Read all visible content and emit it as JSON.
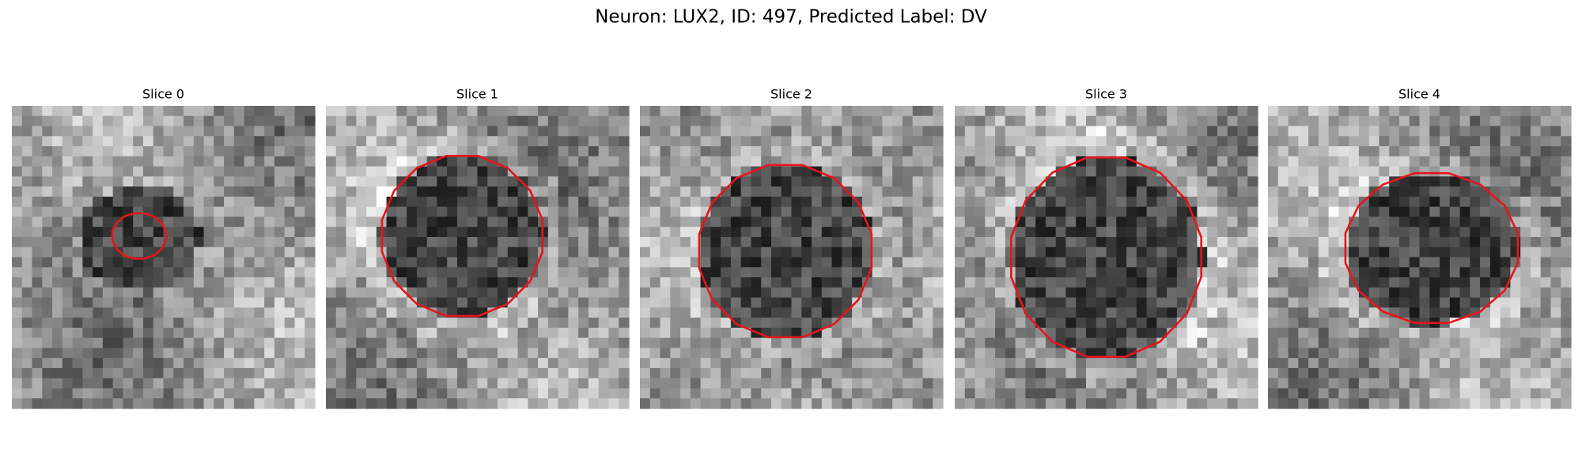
{
  "title": "Neuron: LUX2, ID: 497, Predicted Label: DV",
  "panels": [
    {
      "title": "Slice 0"
    },
    {
      "title": "Slice 1"
    },
    {
      "title": "Slice 2"
    },
    {
      "title": "Slice 3"
    },
    {
      "title": "Slice 4"
    }
  ]
}
